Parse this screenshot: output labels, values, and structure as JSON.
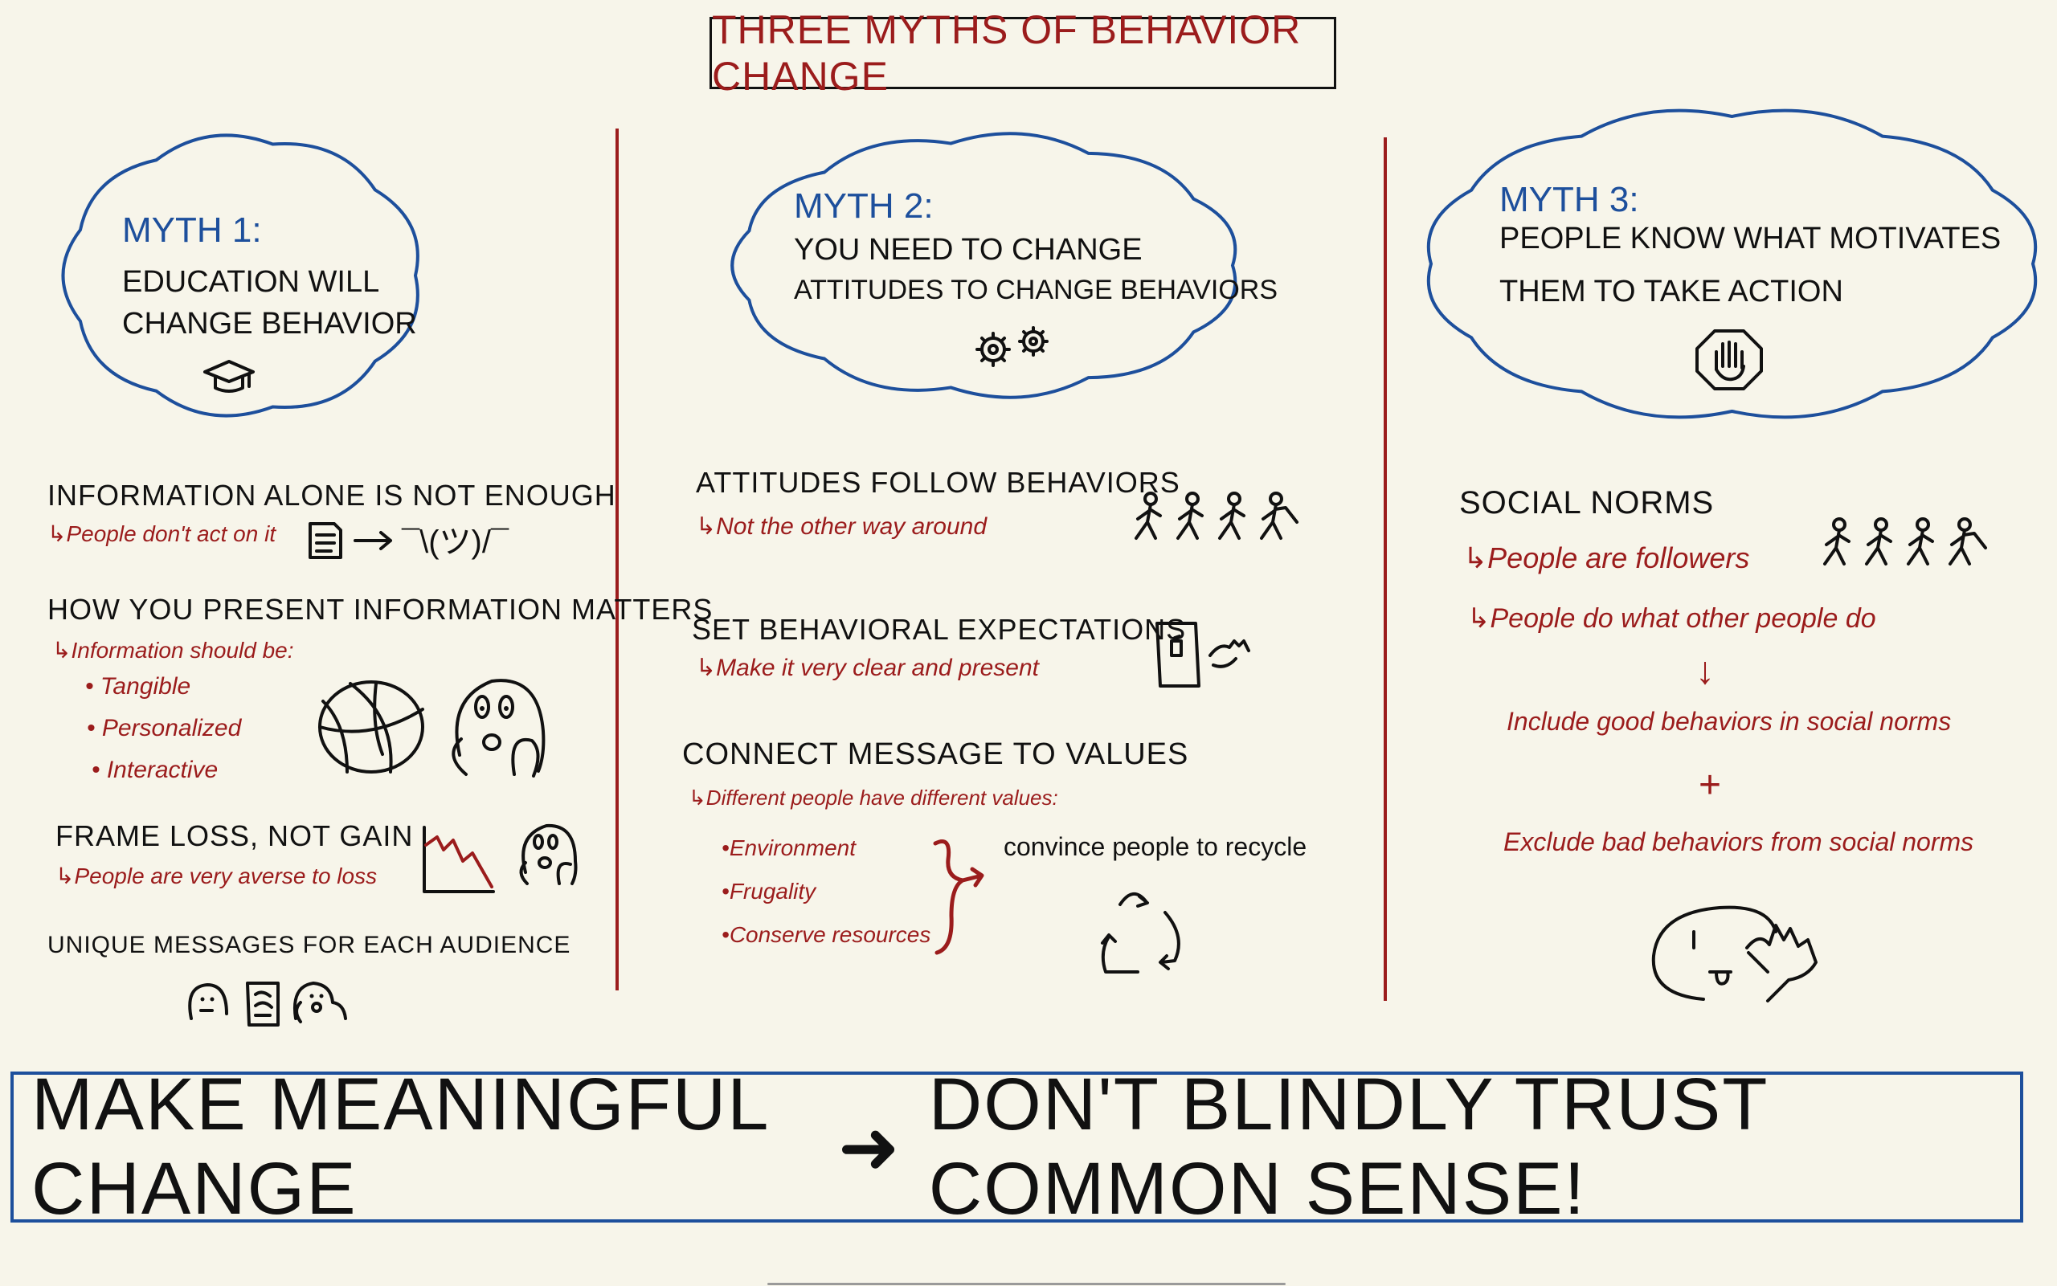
{
  "title": "Three Myths of Behavior Change",
  "colors": {
    "background": "#f7f5ea",
    "accent_red": "#9b1c1c",
    "accent_blue": "#1d4f9c",
    "ink": "#111111"
  },
  "myths": [
    {
      "label": "Myth 1:",
      "lines": [
        "Education will",
        "change behavior"
      ],
      "icon": "graduation-cap-icon"
    },
    {
      "label": "Myth 2:",
      "lines": [
        "You need to change",
        "attitudes to change behaviors"
      ],
      "icon": "gears-icon"
    },
    {
      "label": "Myth 3:",
      "lines": [
        "People know what motivates",
        "them to take action"
      ],
      "icon": "raised-hand-icon"
    }
  ],
  "column1": {
    "sections": [
      {
        "heading": "Information alone is not enough",
        "note": "People don't act on it",
        "shrug": "¯\\(ツ)/¯"
      },
      {
        "heading": "How you present information matters",
        "note": "Information should be:",
        "bullets": [
          "Tangible",
          "Personalized",
          "Interactive"
        ]
      },
      {
        "heading": "Frame loss, not gain",
        "note": "People are very averse to loss"
      },
      {
        "heading": "Unique messages for each audience"
      }
    ]
  },
  "column2": {
    "sections": [
      {
        "heading": "Attitudes follow behaviors",
        "note": "Not the other way around"
      },
      {
        "heading": "Set behavioral expectations",
        "note": "Make it very clear and present"
      },
      {
        "heading": "Connect message to values",
        "note": "Different people have different values:",
        "bullets": [
          "Environment",
          "Frugality",
          "Conserve resources"
        ],
        "outcome": "convince people to recycle"
      }
    ]
  },
  "column3": {
    "heading": "Social norms",
    "notes": [
      "People are followers",
      "People do what other people do"
    ],
    "arrow": "↓",
    "include": "Include good behaviors in social norms",
    "plus": "+",
    "exclude": "Exclude bad behaviors from social norms"
  },
  "conclusion": {
    "left": "Make meaningful change",
    "arrow": "➜",
    "right": "Don't blindly trust common sense!"
  }
}
